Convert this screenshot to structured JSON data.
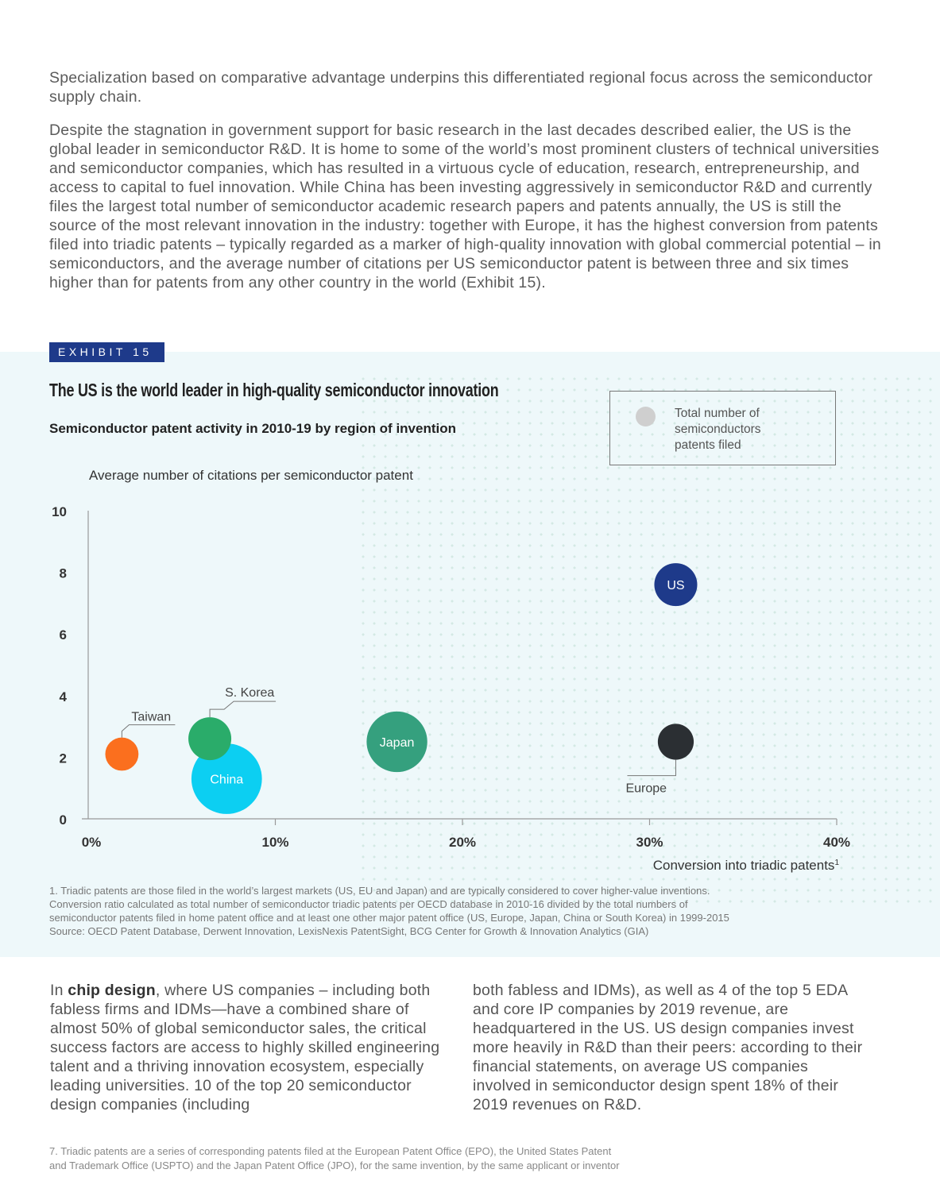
{
  "intro": {
    "p1": "Specialization based on comparative advantage underpins this differentiated regional focus across the semiconductor supply chain.",
    "p2": "Despite the stagnation in government support for basic research in the last decades described ealier, the US is the global leader in semiconductor R&D. It is home to some of the world’s most prominent clusters of technical universities and semiconductor companies, which has resulted in a virtuous cycle of education, research, entrepreneurship, and access to capital to fuel innovation. While China has been investing aggressively in semiconductor R&D and currently files the largest total number of semiconductor academic research papers and patents annually, the US is still the source of the most relevant innovation in the industry: together with Europe, it has the highest conversion from patents filed into triadic patents – typically regarded as a marker of high-quality innovation with global commercial potential – in semiconductors, and the average number of citations per US semiconductor patent is between three and six times higher than for patents from any other country in the world (Exhibit 15)."
  },
  "exhibit": {
    "tag": "EXHIBIT 15",
    "title": "The US is the world leader in high-quality semiconductor innovation",
    "subtitle": "Semiconductor patent activity in 2010-19 by region of invention",
    "legend_text": "Total number of semiconductors patents filed"
  },
  "chart_data": {
    "type": "scatter",
    "ylabel": "Average number of citations per semiconductor patent",
    "xlabel": "Conversion into triadic patents",
    "xlabel_superscript": "1",
    "xlim": [
      0,
      40
    ],
    "ylim": [
      0,
      10
    ],
    "x_ticks": [
      0,
      10,
      20,
      30,
      40
    ],
    "x_tick_labels": [
      "0%",
      "10%",
      "20%",
      "30%",
      "40%"
    ],
    "y_ticks": [
      0,
      2,
      4,
      6,
      8,
      10
    ],
    "y_tick_labels": [
      "0",
      "2",
      "4",
      "6",
      "8",
      "10"
    ],
    "size_legend": "Total number of semiconductors patents filed",
    "points": [
      {
        "label": "US",
        "x": 31.4,
        "y": 7.6,
        "relative_size": 1.0,
        "color": "#1e3a8a",
        "label_inside": true
      },
      {
        "label": "Europe",
        "x": 31.4,
        "y": 2.5,
        "relative_size": 0.7,
        "color": "#2b2f33",
        "label_inside": false
      },
      {
        "label": "Japan",
        "x": 16.5,
        "y": 2.5,
        "relative_size": 2.0,
        "color": "#35a07e",
        "label_inside": true
      },
      {
        "label": "China",
        "x": 7.4,
        "y": 1.3,
        "relative_size": 2.7,
        "color": "#0ccff2",
        "label_inside": true
      },
      {
        "label": "S. Korea",
        "x": 6.5,
        "y": 2.6,
        "relative_size": 1.0,
        "color": "#2aac6a",
        "label_inside": false
      },
      {
        "label": "Taiwan",
        "x": 1.8,
        "y": 2.1,
        "relative_size": 0.6,
        "color": "#fb6f1e",
        "label_inside": false
      }
    ],
    "grid": false,
    "legend_position": "top-right"
  },
  "footnote": {
    "line1": "1. Triadic patents are those filed in the world’s largest markets (US, EU and Japan) and are typically considered to cover higher-value inventions.",
    "line2": "Conversion ratio calculated as total number of semiconductor triadic patents per OECD database in 2010-16 divided by the total numbers of",
    "line3": "semiconductor patents filed in home patent office and at least one other major patent office (US, Europe, Japan, China or South Korea) in 1999-2015",
    "source": "Source: OECD Patent Database, Derwent Innovation, LexisNexis PatentSight,  BCG Center for Growth & Innovation Analytics (GIA)"
  },
  "body": {
    "left_prefix": "In ",
    "left_bold": "chip design",
    "left_rest": ", where US companies – including both fabless firms and IDMs—have a combined share of almost 50% of global semiconductor sales, the critical success factors are access to highly skilled engineering talent and a thriving innovation ecosystem, especially leading universities. 10 of the top 20 semiconductor design companies (including",
    "right": "both fabless and IDMs), as well as 4 of the top 5 EDA and core IP companies by 2019 revenue, are headquartered in the US. US design companies invest more heavily in R&D than their peers: according to their financial statements, on average US companies involved in semiconductor design spent 18% of their 2019 revenues on R&D."
  },
  "page_footnote": {
    "line1": "7. Triadic patents are a series of corresponding patents filed at the European Patent Office (EPO), the United States Patent",
    "line2": "and Trademark Office (USPTO) and the Japan Patent Office (JPO), for the same invention, by the same applicant or inventor"
  },
  "colors": {
    "exhibit_tag": "#1e3a8a",
    "band_background": "#eef8fa",
    "legend_bubble": "#cfcfcf"
  }
}
